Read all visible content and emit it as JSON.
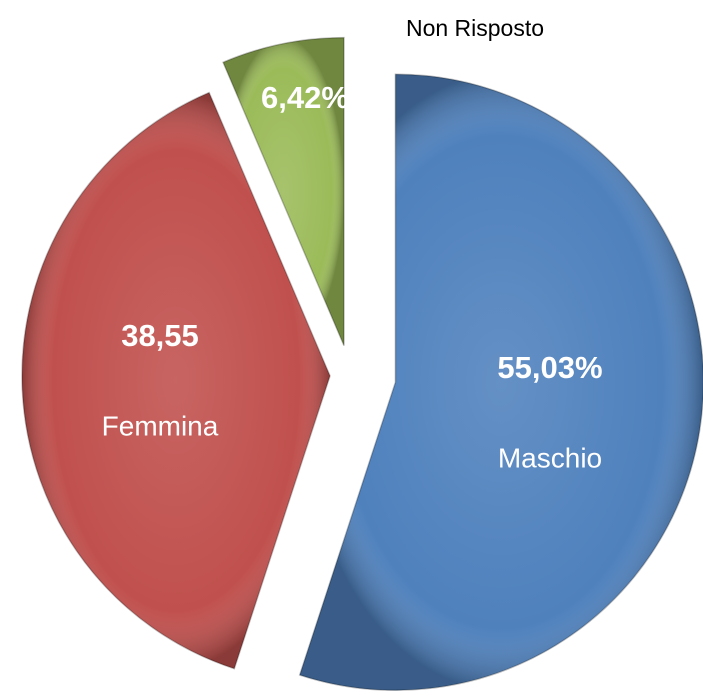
{
  "chart_data": {
    "type": "pie",
    "categories": [
      "Maschio",
      "Femmina",
      "Non Risposto"
    ],
    "values": [
      55.03,
      38.55,
      6.42
    ],
    "value_labels": [
      "55,03%",
      "38,55",
      "6,42%"
    ],
    "colors": [
      "#4f81bd",
      "#c0504d",
      "#9bbb59"
    ]
  }
}
